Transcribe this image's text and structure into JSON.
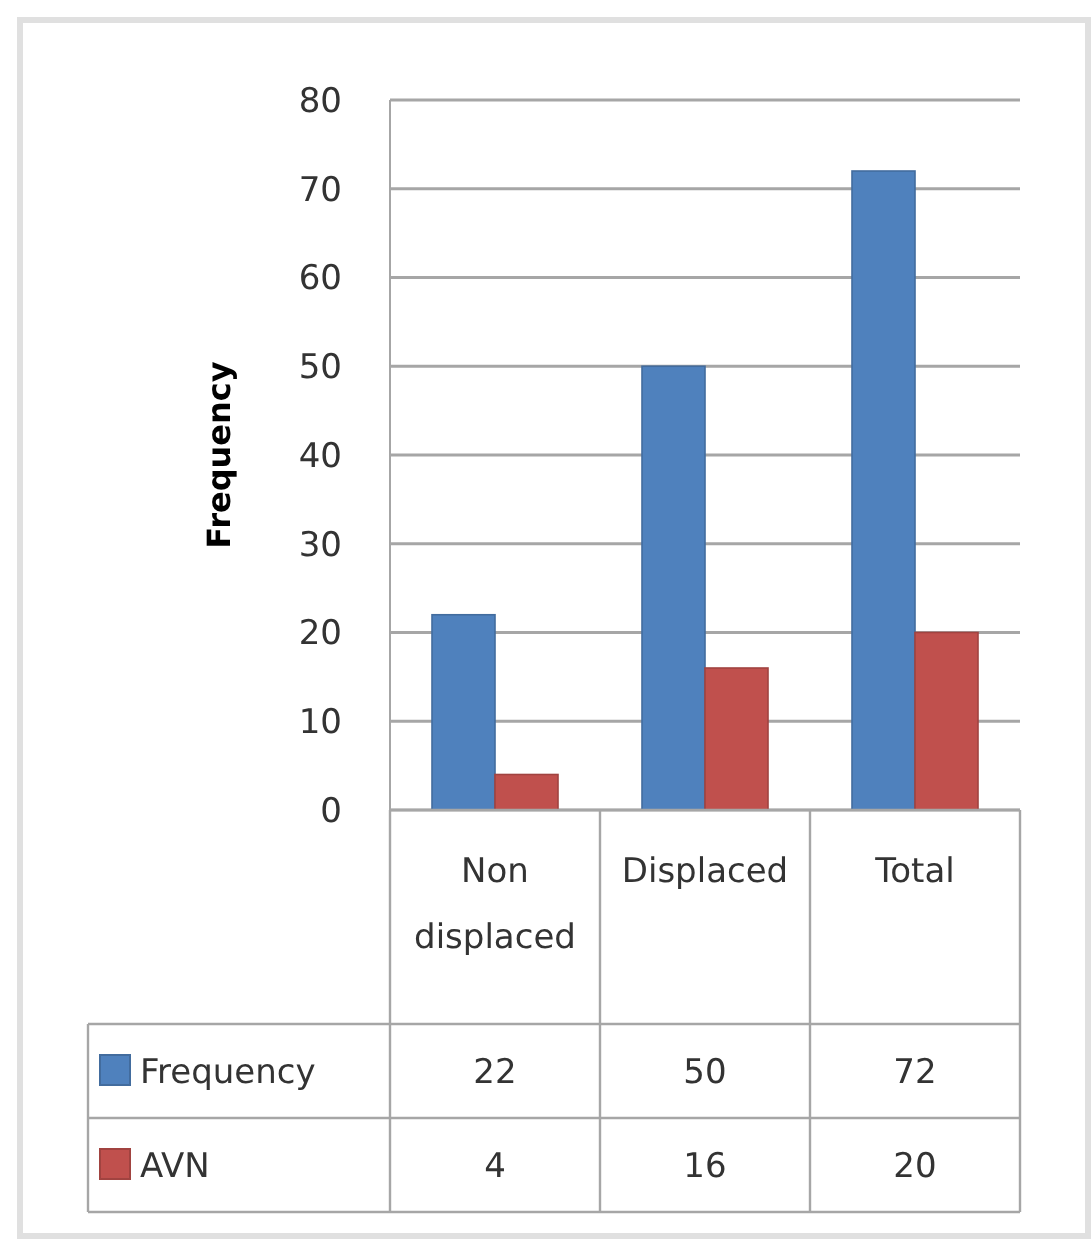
{
  "chart_data": {
    "type": "bar",
    "ylabel": "Frequency",
    "categories": [
      "Non displaced",
      "Displaced",
      "Total"
    ],
    "series": [
      {
        "name": "Frequency",
        "color": "#4f81bd",
        "values": [
          22,
          50,
          72
        ]
      },
      {
        "name": "AVN",
        "color": "#c0504d",
        "values": [
          4,
          16,
          20
        ]
      }
    ],
    "ylim": [
      0,
      80
    ],
    "yticks": [
      0,
      10,
      20,
      30,
      40,
      50,
      60,
      70,
      80
    ],
    "grid": "y",
    "legend": "bottom",
    "data_labels": true
  }
}
